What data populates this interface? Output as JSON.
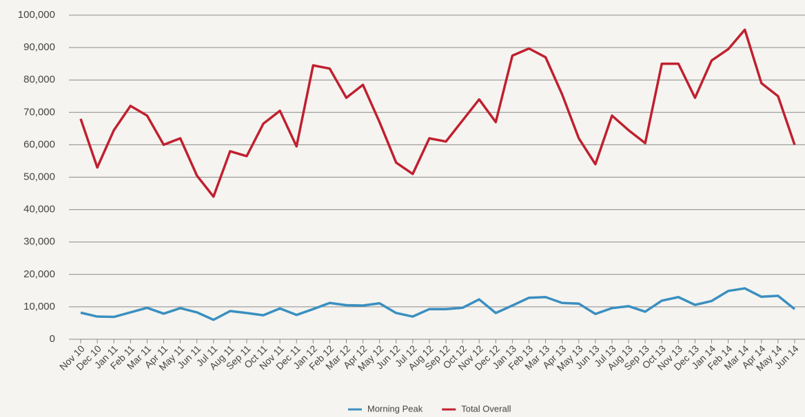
{
  "chart_data": {
    "type": "line",
    "categories": [
      "Nov 10",
      "Dec 10",
      "Jan 11",
      "Feb 11",
      "Mar 11",
      "Apr 11",
      "May 11",
      "Jun 11",
      "Jul 11",
      "Aug 11",
      "Sep 11",
      "Oct 11",
      "Nov 11",
      "Dec 11",
      "Jan 12",
      "Feb 12",
      "Mar 12",
      "Apr 12",
      "May 12",
      "Jun 12",
      "Jul 12",
      "Aug 12",
      "Sep 12",
      "Oct 12",
      "Nov 12",
      "Dec 12",
      "Jan 13",
      "Feb 13",
      "Mar 13",
      "Apr 13",
      "May 13",
      "Jun 13",
      "Jul 13",
      "Aug 13",
      "Sep 13",
      "Oct 13",
      "Nov 13",
      "Dec 13",
      "Jan 14",
      "Feb 14",
      "Mar 14",
      "Apr 14",
      "May 14",
      "Jun 14"
    ],
    "series": [
      {
        "name": "Morning Peak",
        "color": "#3a8fc0",
        "values": [
          8200,
          7000,
          6900,
          8300,
          9700,
          7900,
          9600,
          8300,
          6000,
          8700,
          8100,
          7400,
          9500,
          7500,
          9300,
          11200,
          10500,
          10400,
          11100,
          8100,
          7000,
          9300,
          9300,
          9700,
          12300,
          8100,
          10400,
          12800,
          13000,
          11200,
          11000,
          7800,
          9600,
          10200,
          8500,
          11900,
          13000,
          10600,
          11800,
          14900,
          15700,
          13100,
          13400,
          9300
        ]
      },
      {
        "name": "Total Overall",
        "color": "#c0202f",
        "values": [
          68000,
          53000,
          64500,
          72000,
          69000,
          60000,
          62000,
          50500,
          44000,
          58000,
          56500,
          66500,
          70500,
          59500,
          84500,
          83500,
          74500,
          78500,
          67000,
          54500,
          51000,
          62000,
          61000,
          67500,
          74000,
          67000,
          87500,
          89700,
          87000,
          75500,
          62000,
          54000,
          69000,
          64500,
          60500,
          85000,
          85000,
          74500,
          86000,
          89500,
          95500,
          79000,
          75000,
          60000
        ]
      }
    ],
    "ylim": [
      0,
      100000
    ],
    "yticks": [
      0,
      {
        "value": 10000,
        "label": "10,000"
      },
      {
        "value": 20000,
        "label": "20,000"
      },
      {
        "value": 30000,
        "label": "30,000"
      },
      {
        "value": 40000,
        "label": "40,000"
      },
      {
        "value": 50000,
        "label": "50,000"
      },
      {
        "value": 60000,
        "label": "60,000"
      },
      {
        "value": 70000,
        "label": "70,000"
      },
      {
        "value": 80000,
        "label": "80,000"
      },
      {
        "value": 90000,
        "label": "90,000"
      },
      {
        "value": 100000,
        "label": "100,000"
      }
    ],
    "grid": true,
    "legend": "bottom"
  }
}
